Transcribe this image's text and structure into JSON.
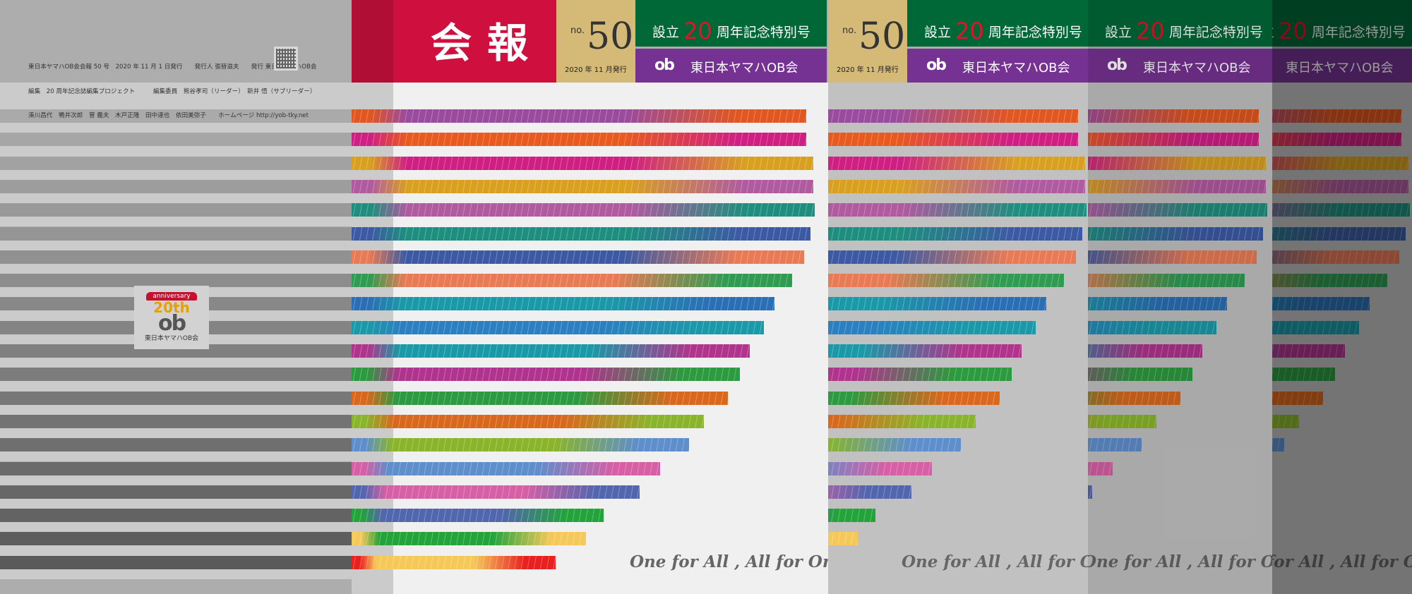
{
  "imprint": {
    "line1": "東日本ヤマハOB会会報 50 号　2020 年 11 月 1 日発行　　発行人 張替滋夫　　発行 東日本ヤマハOB会",
    "line2": "編集　20 周年記念誌編集プロジェクト　　　編集委員　熊谷孝司（リーダー）　新井 悟（サブリーダー）",
    "line3": "湊川昌代　鴨井次郎　菅 義夫　木戸正隆　田中達也　依田美弥子　　ホームページ http://yob-tky.net"
  },
  "anniversary_logo": {
    "ribbon": "anniversary",
    "years": "20th",
    "mark": "ob",
    "name": "東日本ヤマハOB会"
  },
  "cover": {
    "title": "会報",
    "no_label": "no.",
    "issue_number": "50",
    "issue_date": "2020 年 11 月発行",
    "special_prefix": "設立",
    "special_number": "20",
    "special_suffix": "周年記念特別号",
    "org_mark": "ob",
    "org_name": "東日本ヤマハOB会",
    "motto": "One for All , All for One"
  },
  "colors": {
    "crimson": "#cf103f",
    "gold": "#d4b977",
    "green": "#006837",
    "purple": "#763292",
    "bars": [
      [
        "#e2561f",
        "#9a4b9e"
      ],
      [
        "#cf1f83",
        "#e85a20"
      ],
      [
        "#d9a020",
        "#cf1f83"
      ],
      [
        "#b05aa0",
        "#d9a020"
      ],
      [
        "#1e8f7e",
        "#b05aa0"
      ],
      [
        "#3c5aa4",
        "#1e8f7e"
      ],
      [
        "#e87a55",
        "#3c5aa4"
      ],
      [
        "#2f9c52",
        "#e87a55"
      ],
      [
        "#2a6fb5",
        "#1a9aa8"
      ],
      [
        "#1a9aa8",
        "#2a80c0"
      ],
      [
        "#b0348c",
        "#1a9aa8"
      ],
      [
        "#2c9a40",
        "#b0348c"
      ],
      [
        "#d9681c",
        "#2c9a40"
      ],
      [
        "#8ab52a",
        "#d9681c"
      ],
      [
        "#5e8ecb",
        "#8ab52a"
      ],
      [
        "#d65fa5",
        "#5e8ecb"
      ],
      [
        "#5166ad",
        "#d65fa5"
      ],
      [
        "#22a43a",
        "#5166ad"
      ],
      [
        "#f5c85a",
        "#22a43a"
      ],
      [
        "#e82020",
        "#f5c85a"
      ]
    ]
  }
}
